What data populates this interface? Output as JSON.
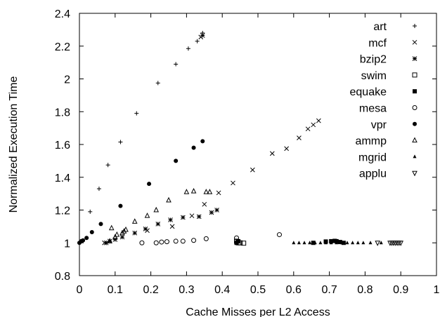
{
  "chart_data": {
    "type": "scatter",
    "title": "",
    "xlabel": "Cache Misses per L2 Access",
    "ylabel": "Normalized Execution Time",
    "xlim": [
      0,
      1
    ],
    "ylim": [
      0.8,
      2.4
    ],
    "xticks": [
      "0",
      "0.1",
      "0.2",
      "0.3",
      "0.4",
      "0.5",
      "0.6",
      "0.7",
      "0.8",
      "0.9",
      "1"
    ],
    "yticks": [
      "0.8",
      "1",
      "1.2",
      "1.4",
      "1.6",
      "1.8",
      "2",
      "2.2",
      "2.4"
    ],
    "grid": false,
    "legend_position": "top-right",
    "series": [
      {
        "name": "art",
        "marker": "plus",
        "points": [
          [
            0.0,
            1.0
          ],
          [
            0.03,
            1.19
          ],
          [
            0.055,
            1.33
          ],
          [
            0.08,
            1.475
          ],
          [
            0.115,
            1.615
          ],
          [
            0.16,
            1.79
          ],
          [
            0.22,
            1.975
          ],
          [
            0.27,
            2.09
          ],
          [
            0.305,
            2.185
          ],
          [
            0.33,
            2.23
          ],
          [
            0.345,
            2.28
          ]
        ]
      },
      {
        "name": "mcf",
        "marker": "cross",
        "points": [
          [
            0.07,
            1.0
          ],
          [
            0.19,
            1.075
          ],
          [
            0.26,
            1.1
          ],
          [
            0.315,
            1.165
          ],
          [
            0.35,
            1.235
          ],
          [
            0.39,
            1.305
          ],
          [
            0.43,
            1.365
          ],
          [
            0.485,
            1.445
          ],
          [
            0.54,
            1.545
          ],
          [
            0.58,
            1.575
          ],
          [
            0.615,
            1.64
          ],
          [
            0.64,
            1.695
          ],
          [
            0.655,
            1.72
          ],
          [
            0.67,
            1.745
          ],
          [
            0.34,
            2.255
          ]
        ]
      },
      {
        "name": "bzip2",
        "marker": "asterisk",
        "points": [
          [
            0.075,
            1.0
          ],
          [
            0.085,
            1.01
          ],
          [
            0.1,
            1.02
          ],
          [
            0.12,
            1.035
          ],
          [
            0.155,
            1.06
          ],
          [
            0.185,
            1.085
          ],
          [
            0.22,
            1.115
          ],
          [
            0.255,
            1.14
          ],
          [
            0.29,
            1.155
          ],
          [
            0.335,
            1.16
          ],
          [
            0.37,
            1.185
          ],
          [
            0.385,
            1.2
          ],
          [
            0.345,
            2.265
          ]
        ]
      },
      {
        "name": "swim",
        "marker": "square-open",
        "points": [
          [
            0.44,
            1.01
          ],
          [
            0.445,
            1.0
          ],
          [
            0.45,
            1.0
          ],
          [
            0.46,
            0.998
          ]
        ]
      },
      {
        "name": "equake",
        "marker": "square-filled",
        "points": [
          [
            0.44,
            1.0
          ],
          [
            0.445,
            1.01
          ],
          [
            0.655,
            1.0
          ],
          [
            0.69,
            1.008
          ],
          [
            0.705,
            1.01
          ],
          [
            0.715,
            1.012
          ],
          [
            0.72,
            1.01
          ],
          [
            0.73,
            1.005
          ],
          [
            0.74,
            1.0
          ]
        ]
      },
      {
        "name": "mesa",
        "marker": "circle-open",
        "points": [
          [
            0.175,
            1.0
          ],
          [
            0.215,
            1.0
          ],
          [
            0.23,
            1.005
          ],
          [
            0.245,
            1.007
          ],
          [
            0.27,
            1.01
          ],
          [
            0.29,
            1.01
          ],
          [
            0.32,
            1.015
          ],
          [
            0.355,
            1.025
          ],
          [
            0.44,
            1.03
          ],
          [
            0.56,
            1.05
          ]
        ]
      },
      {
        "name": "vpr",
        "marker": "circle-filled",
        "points": [
          [
            0.0,
            1.0
          ],
          [
            0.005,
            1.01
          ],
          [
            0.01,
            1.015
          ],
          [
            0.02,
            1.03
          ],
          [
            0.035,
            1.065
          ],
          [
            0.06,
            1.115
          ],
          [
            0.115,
            1.225
          ],
          [
            0.195,
            1.36
          ],
          [
            0.27,
            1.5
          ],
          [
            0.32,
            1.58
          ],
          [
            0.345,
            1.62
          ]
        ]
      },
      {
        "name": "ammp",
        "marker": "triangle-open",
        "points": [
          [
            0.085,
            1.01
          ],
          [
            0.1,
            1.035
          ],
          [
            0.105,
            1.05
          ],
          [
            0.12,
            1.06
          ],
          [
            0.125,
            1.07
          ],
          [
            0.13,
            1.08
          ],
          [
            0.09,
            1.09
          ],
          [
            0.155,
            1.13
          ],
          [
            0.19,
            1.165
          ],
          [
            0.215,
            1.2
          ],
          [
            0.25,
            1.26
          ],
          [
            0.3,
            1.31
          ],
          [
            0.32,
            1.315
          ],
          [
            0.355,
            1.31
          ],
          [
            0.365,
            1.31
          ]
        ]
      },
      {
        "name": "mgrid",
        "marker": "triangle-filled",
        "points": [
          [
            0.6,
            1.0
          ],
          [
            0.615,
            1.0
          ],
          [
            0.63,
            1.0
          ],
          [
            0.645,
            1.0
          ],
          [
            0.66,
            1.0
          ],
          [
            0.675,
            1.0
          ],
          [
            0.69,
            1.0
          ],
          [
            0.705,
            1.0
          ],
          [
            0.72,
            1.0
          ],
          [
            0.735,
            1.0
          ],
          [
            0.75,
            1.0
          ],
          [
            0.765,
            1.0
          ],
          [
            0.78,
            1.0
          ],
          [
            0.795,
            1.0
          ],
          [
            0.815,
            1.0
          ],
          [
            0.845,
            1.0
          ]
        ]
      },
      {
        "name": "applu",
        "marker": "triangle-down-open",
        "points": [
          [
            0.835,
            1.0
          ],
          [
            0.87,
            1.0
          ],
          [
            0.875,
            1.0
          ],
          [
            0.88,
            1.0
          ],
          [
            0.885,
            1.0
          ],
          [
            0.89,
            1.0
          ],
          [
            0.895,
            1.0
          ],
          [
            0.9,
            1.0
          ]
        ]
      }
    ]
  }
}
